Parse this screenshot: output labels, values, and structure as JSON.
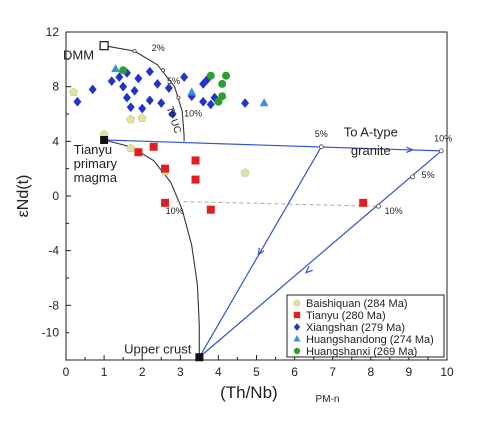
{
  "chart_data": {
    "type": "scatter",
    "title": "",
    "xlabel": "(Th/Nb)",
    "xlabel_sub": "PM-n",
    "ylabel": "εNd(t)",
    "xlim": [
      0,
      10
    ],
    "ylim": [
      -12,
      12
    ],
    "xticks": [
      "0",
      "1",
      "2",
      "3",
      "4",
      "5",
      "6",
      "7",
      "8",
      "9",
      "10"
    ],
    "yticks": [
      "12",
      "8",
      "4",
      "0",
      "-4",
      "-8",
      "-10"
    ],
    "ytick_values": [
      12,
      8,
      4,
      0,
      -4,
      -8,
      -10
    ],
    "grid": false,
    "legend_position": "bottom-right",
    "colors": {
      "Baishiquan": "#e3e3a0",
      "Tianyu": "#e02020",
      "Xiangshan": "#2233cc",
      "Huangshandong": "#3c8fd8",
      "Huangshanxi": "#2ca02c",
      "mixing_line": "#3355cc",
      "crust_curve": "#333333",
      "dashed_line": "#aaaaaa"
    },
    "series": [
      {
        "name": "Baishiquan (284 Ma)",
        "marker": "pentagon",
        "points": [
          [
            0.2,
            7.6
          ],
          [
            1.0,
            4.5
          ],
          [
            1.7,
            5.6
          ],
          [
            2.0,
            5.7
          ],
          [
            1.7,
            3.5
          ],
          [
            2.6,
            1.8
          ],
          [
            4.7,
            1.7
          ]
        ]
      },
      {
        "name": "Tianyu (280 Ma)",
        "marker": "square",
        "points": [
          [
            1.9,
            3.2
          ],
          [
            2.3,
            3.6
          ],
          [
            2.6,
            2.0
          ],
          [
            2.6,
            -0.5
          ],
          [
            3.4,
            2.6
          ],
          [
            3.4,
            1.2
          ],
          [
            3.8,
            -1.0
          ],
          [
            7.8,
            -0.5
          ]
        ]
      },
      {
        "name": "Xiangshan (279 Ma)",
        "marker": "diamond",
        "points": [
          [
            0.3,
            6.9
          ],
          [
            0.7,
            7.8
          ],
          [
            1.2,
            8.4
          ],
          [
            1.4,
            8.7
          ],
          [
            1.5,
            8.0
          ],
          [
            1.6,
            9.0
          ],
          [
            1.6,
            7.2
          ],
          [
            1.7,
            6.5
          ],
          [
            1.8,
            7.7
          ],
          [
            1.9,
            8.6
          ],
          [
            2.0,
            6.4
          ],
          [
            2.2,
            9.1
          ],
          [
            2.2,
            7.0
          ],
          [
            2.4,
            8.2
          ],
          [
            2.5,
            6.8
          ],
          [
            2.7,
            7.9
          ],
          [
            2.8,
            6.0
          ],
          [
            3.1,
            8.7
          ],
          [
            3.3,
            7.3
          ],
          [
            3.6,
            8.2
          ],
          [
            3.6,
            6.9
          ],
          [
            3.7,
            8.5
          ],
          [
            3.8,
            6.7
          ],
          [
            3.9,
            7.2
          ],
          [
            4.7,
            6.8
          ]
        ]
      },
      {
        "name": "Huangshandong (274 Ma)",
        "marker": "triangle",
        "points": [
          [
            1.3,
            9.3
          ],
          [
            3.3,
            7.6
          ],
          [
            5.2,
            6.8
          ]
        ]
      },
      {
        "name": "Huangshanxi (269 Ma)",
        "marker": "circle",
        "points": [
          [
            1.5,
            9.2
          ],
          [
            3.8,
            8.8
          ],
          [
            4.1,
            8.2
          ],
          [
            4.2,
            8.8
          ],
          [
            4.1,
            7.3
          ],
          [
            4.0,
            6.9
          ]
        ]
      }
    ],
    "endmembers": [
      {
        "label": "DMM",
        "x": 1.0,
        "y": 11.0,
        "style": "open"
      },
      {
        "label_lines": [
          "Tianyu",
          "primary",
          "magma"
        ],
        "x": 1.0,
        "y": 4.1,
        "style": "filled"
      },
      {
        "label": "Upper crust",
        "x": 3.5,
        "y": -11.8,
        "style": "filled"
      }
    ],
    "annotations": {
      "to_uc": "To UC",
      "to_a_type": [
        "To A-type",
        "granite"
      ],
      "dmm_curve_ticks": [
        "2%",
        "5%",
        "10%"
      ],
      "mix_ticks": [
        "5%",
        "10%",
        "5%",
        "10%",
        "10%"
      ]
    }
  }
}
